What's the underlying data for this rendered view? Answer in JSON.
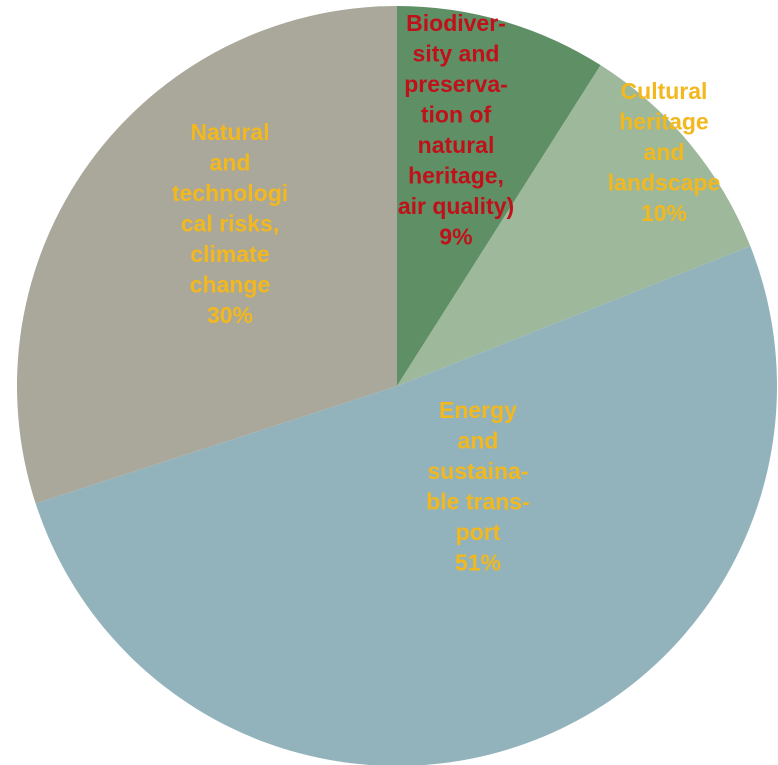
{
  "chart_data": {
    "type": "pie",
    "title": "",
    "legend": "none",
    "slices": [
      {
        "label_lines": [
          "Biodiver-",
          "sity and",
          "preserva-",
          "tion of",
          "natural",
          "heritage,",
          "air quality)"
        ],
        "value_label": "9%",
        "value": 9,
        "color": "#5f8f64",
        "label_color": "#c0111a"
      },
      {
        "label_lines": [
          "Cultural",
          "heritage",
          "and",
          "landscape"
        ],
        "value_label": "10%",
        "value": 10,
        "color": "#9db89a",
        "label_color": "#f2b81e"
      },
      {
        "label_lines": [
          "Energy",
          "and",
          "sustaina-",
          "ble trans-",
          "port"
        ],
        "value_label": "51%",
        "value": 51,
        "color": "#93b3bc",
        "label_color": "#f2b81e"
      },
      {
        "label_lines": [
          "Natural",
          "and",
          "technologi",
          "cal risks,",
          "climate",
          "change"
        ],
        "value_label": "30%",
        "value": 30,
        "color": "#a9a89b",
        "label_color": "#f2b81e"
      }
    ]
  }
}
